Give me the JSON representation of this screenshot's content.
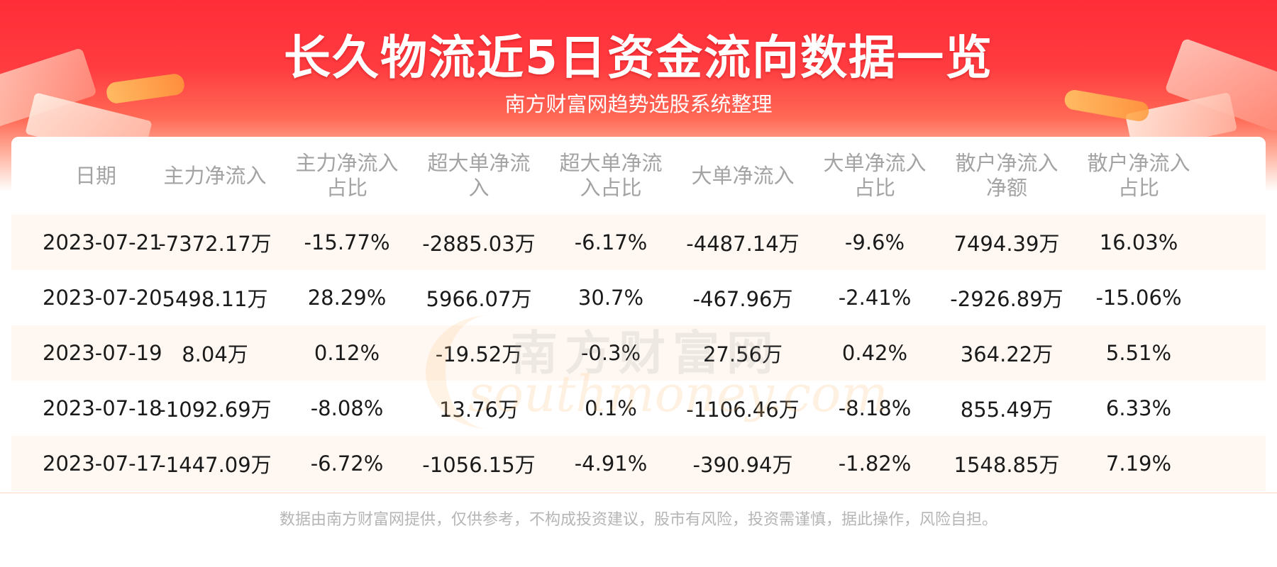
{
  "header": {
    "title": "长久物流近5日资金流向数据一览",
    "subtitle": "南方财富网趋势选股系统整理"
  },
  "table": {
    "columns": [
      "日期",
      "主力净流入",
      "主力净流入\n占比",
      "超大单净流\n入",
      "超大单净流\n入占比",
      "大单净流入",
      "大单净流入\n占比",
      "散户净流入\n净额",
      "散户净流入\n占比"
    ],
    "rows": [
      [
        "2023-07-21",
        "-7372.17万",
        "-15.77%",
        "-2885.03万",
        "-6.17%",
        "-4487.14万",
        "-9.6%",
        "7494.39万",
        "16.03%"
      ],
      [
        "2023-07-20",
        "5498.11万",
        "28.29%",
        "5966.07万",
        "30.7%",
        "-467.96万",
        "-2.41%",
        "-2926.89万",
        "-15.06%"
      ],
      [
        "2023-07-19",
        "8.04万",
        "0.12%",
        "-19.52万",
        "-0.3%",
        "27.56万",
        "0.42%",
        "364.22万",
        "5.51%"
      ],
      [
        "2023-07-18",
        "-1092.69万",
        "-8.08%",
        "13.76万",
        "0.1%",
        "-1106.46万",
        "-8.18%",
        "855.49万",
        "6.33%"
      ],
      [
        "2023-07-17",
        "-1447.09万",
        "-6.72%",
        "-1056.15万",
        "-4.91%",
        "-390.94万",
        "-1.82%",
        "1548.85万",
        "7.19%"
      ]
    ]
  },
  "watermark": {
    "cn": "南方财富网",
    "en": "southmoney.com"
  },
  "footer": {
    "disclaimer": "数据由南方财富网提供，仅供参考，不构成投资建议，股市有风险，投资需谨慎，据此操作，风险自担。"
  },
  "colors": {
    "banner_red": "#ff2d37",
    "header_text": "#a3a3a3",
    "row_stripe": "#fff8f2"
  }
}
